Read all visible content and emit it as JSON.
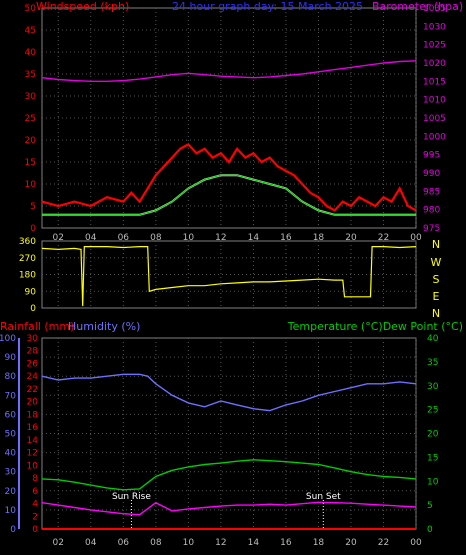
{
  "header": {
    "windspeed_label": "Windspeed (kph)",
    "title": "24 hour graph day: 15 March 2025",
    "barometer_label": "Barometer (hpa)"
  },
  "labels2": {
    "rainfall": "Rainfall (mm)",
    "humidity": "Humidity (%)",
    "temp_dew": "Temperature (°C)Dew Point (°C)",
    "sunrise": "Sun Rise",
    "sunset": "Sun Set"
  },
  "compass": [
    "N",
    "W",
    "S",
    "E",
    "N"
  ],
  "x_ticks": [
    "02",
    "04",
    "06",
    "08",
    "10",
    "12",
    "14",
    "16",
    "18",
    "20",
    "22",
    "00"
  ],
  "colors": {
    "wind_gust": "#ff0000",
    "wind_avg": "#00cc00",
    "wind_light": "#ddffcc",
    "barometer": "#e000e0",
    "direction": "#ffff00",
    "humidity": "#6f6fff",
    "temperature": "#00cc00",
    "dewpoint": "#ff00ff",
    "rainfall": "#ff0000"
  },
  "chart_data": [
    {
      "type": "line",
      "title": "24 hour graph day: 15 March 2025",
      "x_range": [
        1,
        24
      ],
      "left_axis": {
        "label": "Windspeed (kph)",
        "ylim": [
          0,
          50
        ],
        "ticks": [
          0,
          5,
          10,
          15,
          20,
          25,
          30,
          35,
          40,
          45,
          50
        ]
      },
      "right_axis": {
        "label": "Barometer (hpa)",
        "ylim": [
          975,
          1035
        ],
        "ticks": [
          975,
          980,
          985,
          990,
          995,
          1000,
          1005,
          1010,
          1015,
          1020,
          1025,
          1030,
          1035
        ]
      },
      "series": [
        {
          "name": "Wind gust",
          "axis": "left",
          "x": [
            1,
            2,
            3,
            4,
            5,
            6,
            6.5,
            7,
            7.5,
            8,
            8.5,
            9,
            9.5,
            10,
            10.5,
            11,
            11.5,
            12,
            12.5,
            13,
            13.5,
            14,
            14.5,
            15,
            15.5,
            16,
            16.5,
            17,
            17.5,
            18,
            18.5,
            19,
            19.5,
            20,
            20.5,
            21,
            21.5,
            22,
            22.5,
            23,
            23.5,
            24
          ],
          "values": [
            6,
            5,
            6,
            5,
            7,
            6,
            8,
            6,
            9,
            12,
            14,
            16,
            18,
            19,
            17,
            18,
            16,
            17,
            15,
            18,
            16,
            17,
            15,
            16,
            14,
            13,
            12,
            10,
            8,
            7,
            5,
            4,
            6,
            5,
            7,
            6,
            5,
            7,
            6,
            9,
            5,
            4
          ]
        },
        {
          "name": "Wind avg",
          "axis": "left",
          "x": [
            1,
            2,
            3,
            4,
            5,
            6,
            7,
            8,
            9,
            10,
            11,
            12,
            13,
            14,
            15,
            16,
            17,
            18,
            19,
            20,
            21,
            22,
            23,
            24
          ],
          "values": [
            3,
            3,
            3,
            3,
            3,
            3,
            3,
            4,
            6,
            9,
            11,
            12,
            12,
            11,
            10,
            9,
            6,
            4,
            3,
            3,
            3,
            3,
            3,
            3
          ]
        },
        {
          "name": "Barometer",
          "axis": "right",
          "x": [
            1,
            2,
            3,
            4,
            5,
            6,
            7,
            8,
            9,
            10,
            11,
            12,
            13,
            14,
            15,
            16,
            17,
            18,
            19,
            20,
            21,
            22,
            23,
            24
          ],
          "values": [
            1016,
            1015.5,
            1015.2,
            1015,
            1015,
            1015.2,
            1015.6,
            1016.2,
            1016.8,
            1017.2,
            1016.8,
            1016.4,
            1016.2,
            1016,
            1016.2,
            1016.6,
            1017,
            1017.6,
            1018.2,
            1018.8,
            1019.4,
            1020,
            1020.4,
            1020.6
          ]
        }
      ]
    },
    {
      "type": "line",
      "x_range": [
        1,
        24
      ],
      "ylim": [
        0,
        360
      ],
      "ticks": [
        0,
        90,
        180,
        270,
        360
      ],
      "series": [
        {
          "name": "Wind direction",
          "x": [
            1,
            2,
            3,
            3.4,
            3.5,
            3.6,
            4,
            5,
            6,
            7,
            7.5,
            7.6,
            8,
            9,
            10,
            11,
            12,
            13,
            14,
            15,
            16,
            17,
            18,
            19,
            19.5,
            19.6,
            20,
            21,
            21.2,
            21.3,
            22,
            23,
            24
          ],
          "values": [
            320,
            315,
            320,
            315,
            10,
            330,
            330,
            330,
            325,
            330,
            330,
            90,
            100,
            110,
            120,
            120,
            130,
            135,
            140,
            140,
            145,
            150,
            155,
            150,
            150,
            60,
            60,
            60,
            60,
            330,
            330,
            325,
            330
          ]
        }
      ]
    },
    {
      "type": "line",
      "x_range": [
        1,
        24
      ],
      "humidity_axis": {
        "label": "Humidity (%)",
        "ylim": [
          0,
          100
        ],
        "ticks": [
          0,
          10,
          20,
          30,
          40,
          50,
          60,
          70,
          80,
          90,
          100
        ]
      },
      "rainfall_axis": {
        "label": "Rainfall (mm)",
        "ylim": [
          0,
          30
        ],
        "ticks": [
          0,
          2,
          4,
          6,
          8,
          10,
          12,
          14,
          16,
          18,
          20,
          22,
          24,
          26,
          28,
          30
        ]
      },
      "temperature_axis": {
        "label": "Temperature (°C)Dew Point (°C)",
        "ylim": [
          0,
          40
        ],
        "ticks": [
          0,
          5,
          10,
          15,
          20,
          25,
          30,
          35,
          40
        ]
      },
      "series": [
        {
          "name": "Humidity",
          "axis": "humidity",
          "x": [
            1,
            2,
            3,
            4,
            5,
            6,
            7,
            7.5,
            8,
            9,
            10,
            11,
            12,
            13,
            14,
            15,
            16,
            17,
            18,
            19,
            20,
            21,
            22,
            23,
            24
          ],
          "values": [
            80,
            78,
            79,
            79,
            80,
            81,
            81,
            80,
            76,
            70,
            66,
            64,
            67,
            65,
            63,
            62,
            65,
            67,
            70,
            72,
            74,
            76,
            76,
            77,
            76
          ]
        },
        {
          "name": "Temperature",
          "axis": "temperature",
          "x": [
            1,
            2,
            3,
            4,
            5,
            6,
            7,
            8,
            9,
            10,
            11,
            12,
            13,
            14,
            15,
            16,
            17,
            18,
            19,
            20,
            21,
            22,
            23,
            24
          ],
          "values": [
            10.5,
            10.3,
            9.8,
            9.2,
            8.6,
            8.2,
            8.4,
            11,
            12.3,
            13,
            13.5,
            13.8,
            14.2,
            14.5,
            14.3,
            14.1,
            13.8,
            13.5,
            12.8,
            12,
            11.4,
            11,
            10.8,
            10.5
          ]
        },
        {
          "name": "Dew Point",
          "axis": "temperature",
          "x": [
            1,
            2,
            3,
            4,
            5,
            6,
            7,
            8,
            9,
            10,
            11,
            12,
            13,
            14,
            15,
            16,
            17,
            18,
            19,
            20,
            21,
            22,
            23,
            24
          ],
          "values": [
            5.5,
            5,
            4.5,
            4,
            3.6,
            3.2,
            3,
            5.5,
            3.8,
            4.2,
            4.5,
            4.8,
            5,
            5,
            5.2,
            5,
            5.3,
            5.6,
            5.5,
            5.4,
            5.2,
            5,
            4.8,
            4.6
          ]
        },
        {
          "name": "Rainfall",
          "axis": "rainfall",
          "x": [
            1,
            24
          ],
          "values": [
            0,
            0
          ]
        }
      ],
      "annotations": [
        {
          "text": "Sun Rise",
          "x": 6.5
        },
        {
          "text": "Sun Set",
          "x": 18.3
        }
      ]
    }
  ]
}
